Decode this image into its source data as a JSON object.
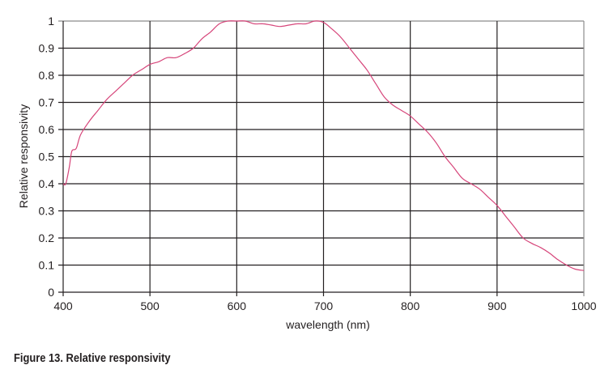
{
  "chart_data": {
    "type": "line",
    "title": "Figure 13. Relative responsivity",
    "xlabel": "wavelength (nm)",
    "ylabel": "Relative responsivity",
    "xlim": [
      400,
      1000
    ],
    "ylim": [
      0,
      1
    ],
    "x_ticks": [
      400,
      500,
      600,
      700,
      800,
      900,
      1000
    ],
    "y_ticks": [
      0,
      0.1,
      0.2,
      0.3,
      0.4,
      0.5,
      0.6,
      0.7,
      0.8,
      0.9,
      1
    ],
    "y_tick_labels": [
      "0",
      "0.1",
      "0.2",
      "0.3",
      "0.4",
      "0.5",
      "0.6",
      "0.7",
      "0.8",
      "0.9",
      "1"
    ],
    "grid": true,
    "legend": null,
    "series": [
      {
        "name": "Relative responsivity",
        "color": "#d6457a",
        "x": [
          400,
          403,
          407,
          410,
          415,
          420,
          430,
          440,
          450,
          460,
          470,
          480,
          490,
          500,
          510,
          520,
          530,
          540,
          550,
          560,
          570,
          580,
          590,
          600,
          610,
          620,
          630,
          640,
          650,
          660,
          670,
          680,
          690,
          700,
          710,
          720,
          730,
          740,
          750,
          760,
          770,
          780,
          790,
          800,
          810,
          820,
          830,
          840,
          850,
          860,
          870,
          880,
          890,
          900,
          910,
          920,
          930,
          940,
          950,
          960,
          970,
          980,
          990,
          1000
        ],
        "y": [
          0.4,
          0.4,
          0.46,
          0.52,
          0.53,
          0.58,
          0.63,
          0.67,
          0.71,
          0.74,
          0.77,
          0.8,
          0.82,
          0.84,
          0.85,
          0.865,
          0.865,
          0.88,
          0.9,
          0.935,
          0.96,
          0.99,
          1.0,
          1.0,
          1.0,
          0.99,
          0.99,
          0.985,
          0.98,
          0.985,
          0.99,
          0.99,
          1.0,
          0.995,
          0.97,
          0.94,
          0.9,
          0.86,
          0.82,
          0.77,
          0.72,
          0.69,
          0.67,
          0.65,
          0.62,
          0.59,
          0.55,
          0.5,
          0.46,
          0.42,
          0.4,
          0.38,
          0.35,
          0.32,
          0.28,
          0.24,
          0.2,
          0.18,
          0.165,
          0.145,
          0.12,
          0.1,
          0.085,
          0.08
        ]
      }
    ]
  },
  "figure": {
    "caption": "Figure 13. Relative responsivity",
    "xlabel": "wavelength (nm)",
    "ylabel": "Relative responsivity"
  }
}
